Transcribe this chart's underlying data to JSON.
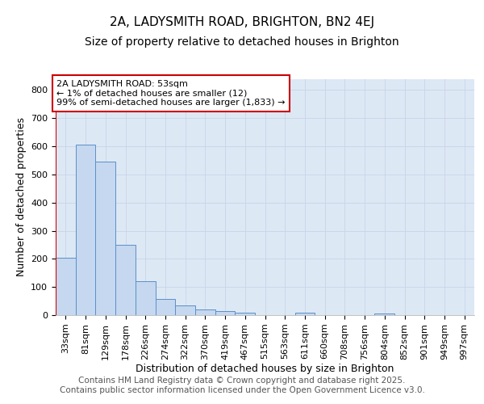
{
  "title": "2A, LADYSMITH ROAD, BRIGHTON, BN2 4EJ",
  "subtitle": "Size of property relative to detached houses in Brighton",
  "xlabel": "Distribution of detached houses by size in Brighton",
  "ylabel": "Number of detached properties",
  "categories": [
    "33sqm",
    "81sqm",
    "129sqm",
    "178sqm",
    "226sqm",
    "274sqm",
    "322sqm",
    "370sqm",
    "419sqm",
    "467sqm",
    "515sqm",
    "563sqm",
    "611sqm",
    "660sqm",
    "708sqm",
    "756sqm",
    "804sqm",
    "852sqm",
    "901sqm",
    "949sqm",
    "997sqm"
  ],
  "values": [
    203,
    605,
    545,
    251,
    120,
    57,
    35,
    20,
    15,
    10,
    0,
    0,
    8,
    0,
    0,
    0,
    6,
    0,
    0,
    0,
    0
  ],
  "bar_color": "#c5d8ef",
  "bar_edge_color": "#5b8fc9",
  "annotation_box_text": "2A LADYSMITH ROAD: 53sqm\n← 1% of detached houses are smaller (12)\n99% of semi-detached houses are larger (1,833) →",
  "annotation_box_color": "#ffffff",
  "annotation_box_edge_color": "#cc0000",
  "vline_color": "#cc0000",
  "vline_x_index": 0,
  "ylim": [
    0,
    840
  ],
  "yticks": [
    0,
    100,
    200,
    300,
    400,
    500,
    600,
    700,
    800
  ],
  "grid_color": "#c8d4e8",
  "background_color": "#dde8f5",
  "footer_text": "Contains HM Land Registry data © Crown copyright and database right 2025.\nContains public sector information licensed under the Open Government Licence v3.0.",
  "title_fontsize": 11,
  "subtitle_fontsize": 10,
  "axis_label_fontsize": 9,
  "tick_fontsize": 8,
  "annotation_fontsize": 8,
  "footer_fontsize": 7.5
}
